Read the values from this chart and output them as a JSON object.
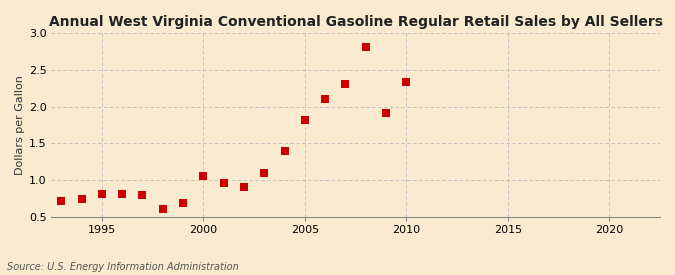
{
  "title": "Annual West Virginia Conventional Gasoline Regular Retail Sales by All Sellers",
  "ylabel": "Dollars per Gallon",
  "source": "Source: U.S. Energy Information Administration",
  "background_color": "#faebd0",
  "plot_bg_color": "#faebd0",
  "years": [
    1993,
    1994,
    1995,
    1996,
    1997,
    1998,
    1999,
    2000,
    2001,
    2002,
    2003,
    2004,
    2005,
    2006,
    2007,
    2008,
    2009,
    2010
  ],
  "values": [
    0.71,
    0.75,
    0.81,
    0.81,
    0.8,
    0.61,
    0.69,
    1.05,
    0.96,
    0.9,
    1.1,
    1.4,
    1.82,
    2.1,
    2.3,
    2.81,
    1.91,
    2.33
  ],
  "marker_color": "#cc0000",
  "marker_size": 28,
  "xlim": [
    1992.5,
    2022.5
  ],
  "ylim": [
    0.5,
    3.0
  ],
  "xticks": [
    1995,
    2000,
    2005,
    2010,
    2015,
    2020
  ],
  "yticks": [
    0.5,
    1.0,
    1.5,
    2.0,
    2.5,
    3.0
  ],
  "title_fontsize": 10,
  "label_fontsize": 8,
  "tick_fontsize": 8,
  "source_fontsize": 7,
  "grid_color": "#bbbbbb",
  "grid_linestyle": "--",
  "spine_color": "#888888"
}
